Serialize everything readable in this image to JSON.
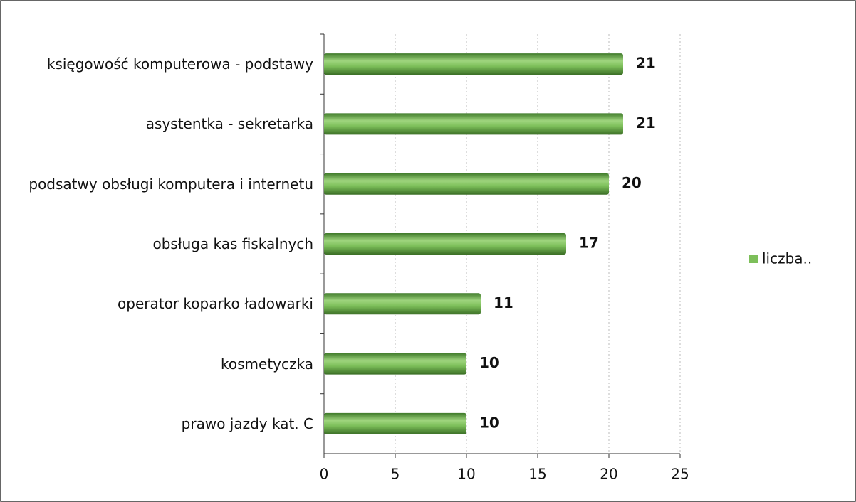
{
  "chart_data": {
    "type": "bar",
    "orientation": "horizontal",
    "categories": [
      "księgowość komputerowa - podstawy",
      "asystentka - sekretarka",
      "podsatwy obsługi komputera i internetu",
      "obsługa kas fiskalnych",
      "operator koparko ładowarki",
      "kosmetyczka",
      "prawo jazdy kat. C"
    ],
    "series": [
      {
        "name": "liczba..",
        "color": "#7dbf5a",
        "values": [
          21,
          21,
          20,
          17,
          11,
          10,
          10
        ]
      }
    ],
    "xlim": [
      0,
      25
    ],
    "xticks": [
      0,
      5,
      10,
      15,
      20,
      25
    ],
    "grid": true,
    "legend": "right"
  }
}
